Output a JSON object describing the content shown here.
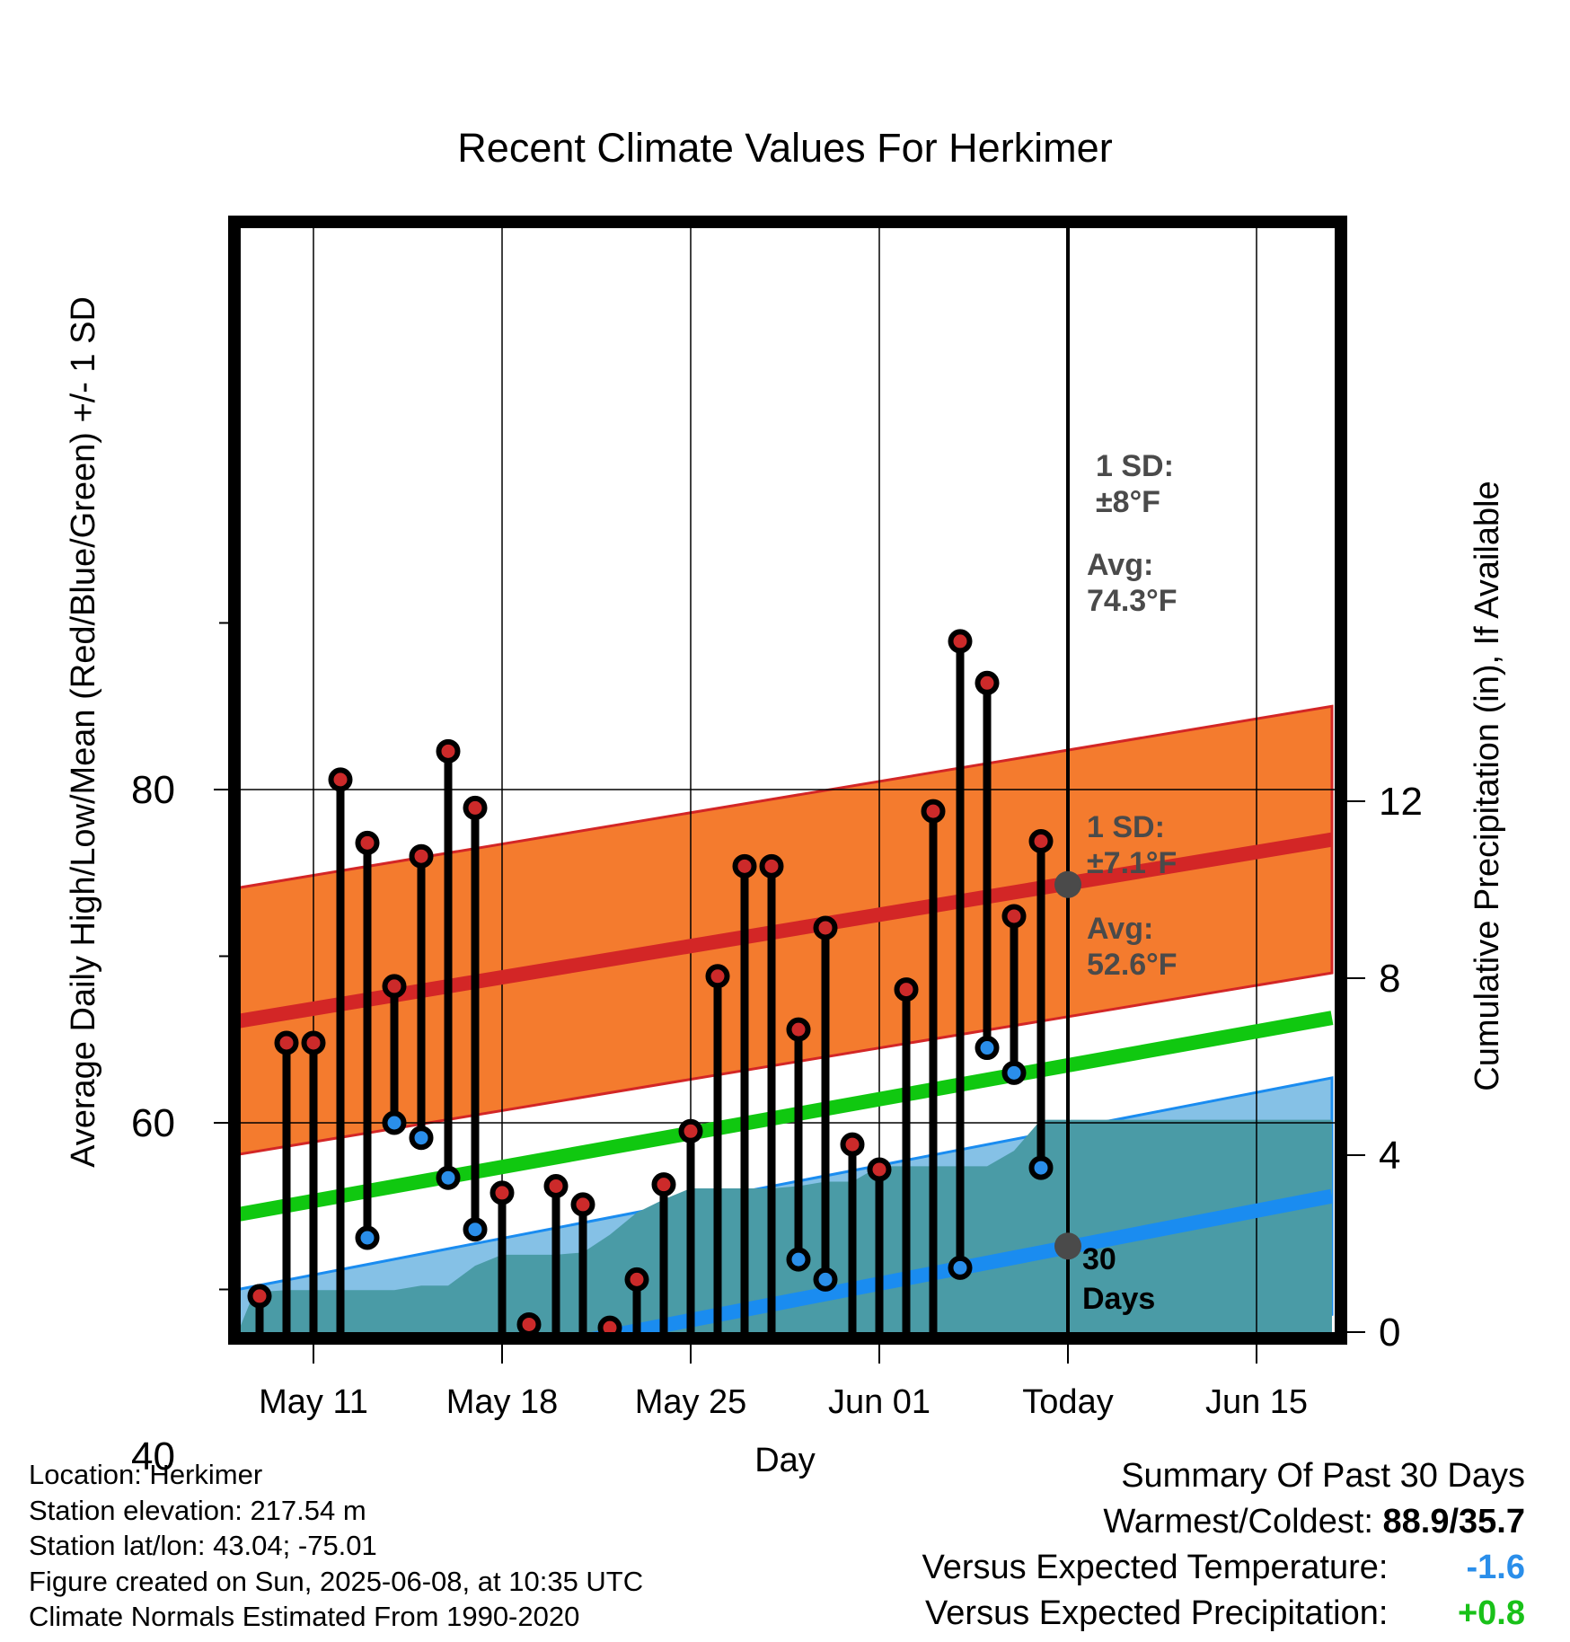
{
  "title": "Recent Climate Values For Herkimer",
  "xlabel": "Day",
  "ylabel_left": "Average Daily High/Low/Mean (Red/Blue/Green) +/- 1 SD",
  "ylabel_right": "Cumulative Precipitation (in), If Available",
  "colors": {
    "high_marker": "#cc2a2a",
    "low_marker": "#2a8eea",
    "high_band": "#f47b2e",
    "low_band": "#85c1e6",
    "high_avg_line": "#d32626",
    "low_avg_line": "#1a8cf0",
    "mean_line": "#10c810",
    "precip_fill": "#4a9ba6",
    "annotation_text": "#4a4a4a",
    "temp_anomaly": "#2a8eea",
    "precip_anomaly": "#19c119"
  },
  "chart_data": {
    "type": "line",
    "x_tick_labels": [
      "May 11",
      "May 18",
      "May 25",
      "Jun 01",
      "Today",
      "Jun 15"
    ],
    "x_tick_days": [
      11,
      18,
      25,
      32,
      39,
      46
    ],
    "x_range_days": [
      8.2,
      49.0
    ],
    "ylim_left": [
      28.3,
      93.6
    ],
    "y_ticks_left": [
      40,
      60,
      80
    ],
    "ylim_right": [
      0,
      22.2
    ],
    "y_ticks_right": [
      0,
      4,
      8,
      12
    ],
    "days": [
      9,
      10,
      11,
      12,
      13,
      14,
      15,
      16,
      17,
      18,
      19,
      20,
      21,
      22,
      23,
      24,
      25,
      26,
      27,
      28,
      29,
      30,
      31,
      32,
      33,
      34,
      35,
      36,
      37,
      38
    ],
    "series": [
      {
        "name": "High",
        "values": [
          49.6,
          64.8,
          64.8,
          80.6,
          76.8,
          68.2,
          76.0,
          82.3,
          78.9,
          55.8,
          47.9,
          56.2,
          55.1,
          47.7,
          50.6,
          56.3,
          59.5,
          68.8,
          75.4,
          75.4,
          65.6,
          71.7,
          58.7,
          57.2,
          68.0,
          78.7,
          88.9,
          86.4,
          72.4,
          76.9
        ]
      },
      {
        "name": "Low",
        "values": [
          44.6,
          43.5,
          39.2,
          35.7,
          53.1,
          60.0,
          59.1,
          56.7,
          53.6,
          44.9,
          42.6,
          40.9,
          43.2,
          42.6,
          41.9,
          45.8,
          46.2,
          43.6,
          41.1,
          45.8,
          51.8,
          50.6,
          45.7,
          44.5,
          42.7,
          38.7,
          51.3,
          64.5,
          63.0,
          57.3
        ]
      }
    ],
    "normals": {
      "high_avg": [
        66.1,
        77.0
      ],
      "high_sd": 8,
      "low_avg": [
        42.9,
        55.6
      ],
      "low_sd": 7.1,
      "mean_avg": [
        54.5,
        66.3
      ],
      "normal_x_range": [
        8.2,
        48.8
      ]
    },
    "precip_cumulative": [
      [
        8.2,
        0.0
      ],
      [
        8.8,
        0.9
      ],
      [
        10,
        0.95
      ],
      [
        12,
        0.95
      ],
      [
        14,
        0.95
      ],
      [
        15,
        1.05
      ],
      [
        16,
        1.05
      ],
      [
        17,
        1.5
      ],
      [
        18,
        1.75
      ],
      [
        20,
        1.75
      ],
      [
        21,
        1.8
      ],
      [
        22,
        2.2
      ],
      [
        23,
        2.7
      ],
      [
        24,
        3.0
      ],
      [
        25,
        3.25
      ],
      [
        27,
        3.25
      ],
      [
        28,
        3.25
      ],
      [
        29,
        3.3
      ],
      [
        30,
        3.4
      ],
      [
        31,
        3.4
      ],
      [
        32,
        3.75
      ],
      [
        34,
        3.75
      ],
      [
        36,
        3.75
      ],
      [
        37,
        4.1
      ],
      [
        38,
        4.8
      ],
      [
        39,
        4.8
      ],
      [
        48.8,
        4.8
      ]
    ],
    "today_day": 39,
    "annotations": {
      "high_sd": "1 SD:\n±8°F",
      "high_avg": "Avg:\n74.3°F",
      "low_sd": "1 SD:\n±7.1°F",
      "low_avg": "Avg:\n52.6°F",
      "period": "30\nDays",
      "high_avg_value": 74.3,
      "low_avg_value": 52.6
    }
  },
  "footer": {
    "location": "Location: Herkimer",
    "elevation": "Station elevation: 217.54 m",
    "latlon": "Station lat/lon: 43.04; -75.01",
    "created": "Figure created on Sun, 2025-06-08, at 10:35 UTC",
    "normals": "Climate Normals Estimated From 1990-2020"
  },
  "summary": {
    "heading": "Summary Of Past 30 Days",
    "warmest_coldest_label": "Warmest/Coldest:",
    "warmest_coldest_value": "88.9/35.7",
    "temp_label": "Versus Expected Temperature:",
    "temp_value": "-1.6",
    "precip_label": "Versus Expected Precipitation:",
    "precip_value": "+0.8"
  }
}
